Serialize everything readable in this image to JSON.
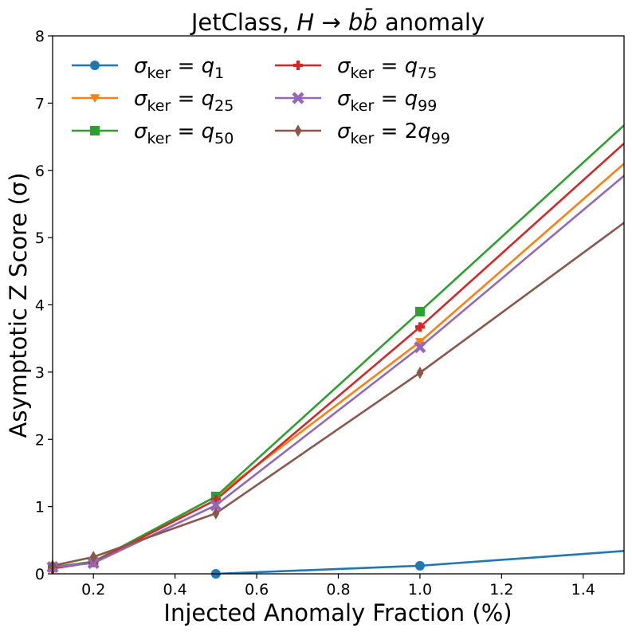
{
  "chart_data": {
    "type": "line",
    "title": "JetClass, H → bb̄ anomaly",
    "xlabel": "Injected Anomaly Fraction (%)",
    "ylabel": "Asymptotic Z Score (σ)",
    "xlim": [
      0.1,
      1.5
    ],
    "ylim": [
      0,
      8
    ],
    "x_ticks": [
      "0.2",
      "0.4",
      "0.6",
      "0.8",
      "1.0",
      "1.2",
      "1.4"
    ],
    "y_ticks": [
      "0",
      "1",
      "2",
      "3",
      "4",
      "5",
      "6",
      "7",
      "8"
    ],
    "grid": false,
    "legend_position": "top-left",
    "series": [
      {
        "name": "σker = q1",
        "sub": "1",
        "mult": "",
        "color": "#1f77b4",
        "marker": "circle",
        "x": [
          0.5,
          1.0,
          1.5
        ],
        "y": [
          0.0,
          0.12,
          0.34
        ]
      },
      {
        "name": "σker = q25",
        "sub": "25",
        "mult": "",
        "color": "#ff7f0e",
        "marker": "triangle-down",
        "x": [
          0.1,
          0.2,
          0.5,
          1.0,
          1.5
        ],
        "y": [
          0.08,
          0.17,
          1.15,
          3.45,
          6.1
        ]
      },
      {
        "name": "σker = q50",
        "sub": "50",
        "mult": "",
        "color": "#2ca02c",
        "marker": "square",
        "x": [
          0.1,
          0.2,
          0.5,
          1.0,
          1.5
        ],
        "y": [
          0.1,
          0.18,
          1.15,
          3.9,
          6.67
        ]
      },
      {
        "name": "σker = q75",
        "sub": "75",
        "mult": "",
        "color": "#d62728",
        "marker": "plus",
        "x": [
          0.1,
          0.2,
          0.5,
          1.0,
          1.5
        ],
        "y": [
          0.08,
          0.17,
          1.1,
          3.67,
          6.4
        ]
      },
      {
        "name": "σker = q99",
        "sub": "99",
        "mult": "",
        "color": "#9467bd",
        "marker": "x",
        "x": [
          0.1,
          0.2,
          0.5,
          1.0,
          1.5
        ],
        "y": [
          0.1,
          0.16,
          1.02,
          3.37,
          5.92
        ]
      },
      {
        "name": "σker = 2q99",
        "sub": "99",
        "mult": "2",
        "color": "#8c564b",
        "marker": "diamond",
        "x": [
          0.1,
          0.2,
          0.5,
          1.0,
          1.5
        ],
        "y": [
          0.12,
          0.25,
          0.9,
          2.99,
          5.22
        ]
      }
    ]
  }
}
